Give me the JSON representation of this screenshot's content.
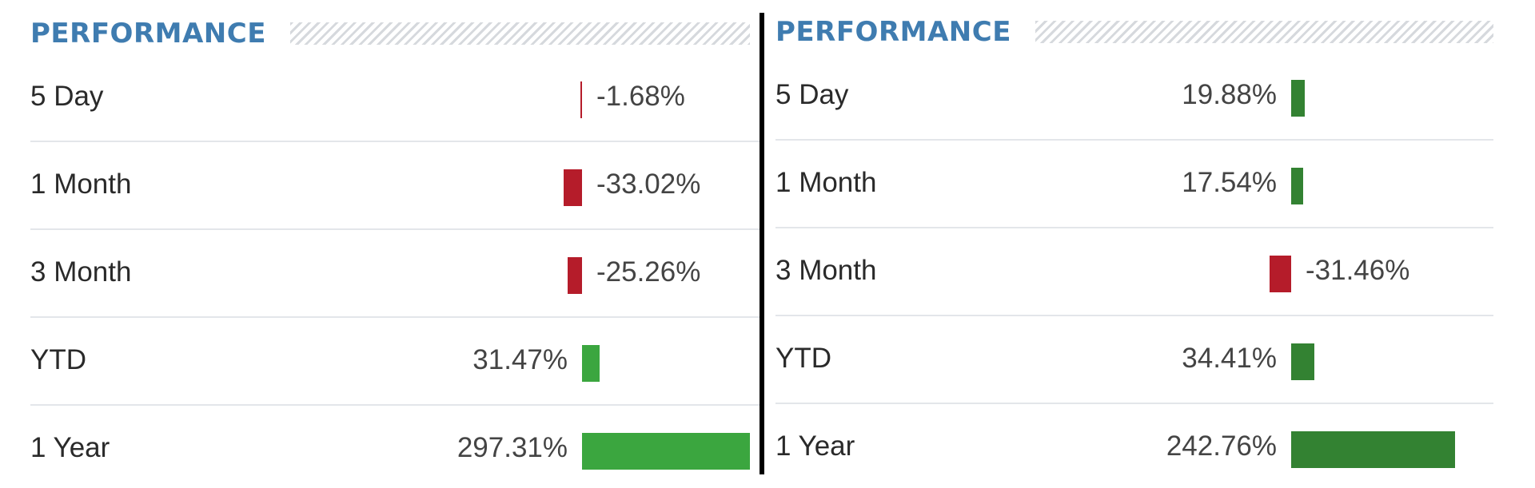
{
  "colors": {
    "title": "#3f7cb0",
    "negative": "#b51c2a",
    "positive_left": "#3ba63f",
    "positive_right": "#338232"
  },
  "panels": [
    {
      "title": "PERFORMANCE",
      "rows": [
        {
          "label": "5 Day",
          "value": "-1.68%",
          "change": -1.68
        },
        {
          "label": "1 Month",
          "value": "-33.02%",
          "change": -33.02
        },
        {
          "label": "3 Month",
          "value": "-25.26%",
          "change": -25.26
        },
        {
          "label": "YTD",
          "value": "31.47%",
          "change": 31.47
        },
        {
          "label": "1 Year",
          "value": "297.31%",
          "change": 297.31
        }
      ]
    },
    {
      "title": "PERFORMANCE",
      "rows": [
        {
          "label": "5 Day",
          "value": "19.88%",
          "change": 19.88
        },
        {
          "label": "1 Month",
          "value": "17.54%",
          "change": 17.54
        },
        {
          "label": "3 Month",
          "value": "-31.46%",
          "change": -31.46
        },
        {
          "label": "YTD",
          "value": "34.41%",
          "change": 34.41
        },
        {
          "label": "1 Year",
          "value": "242.76%",
          "change": 242.76
        }
      ]
    }
  ]
}
